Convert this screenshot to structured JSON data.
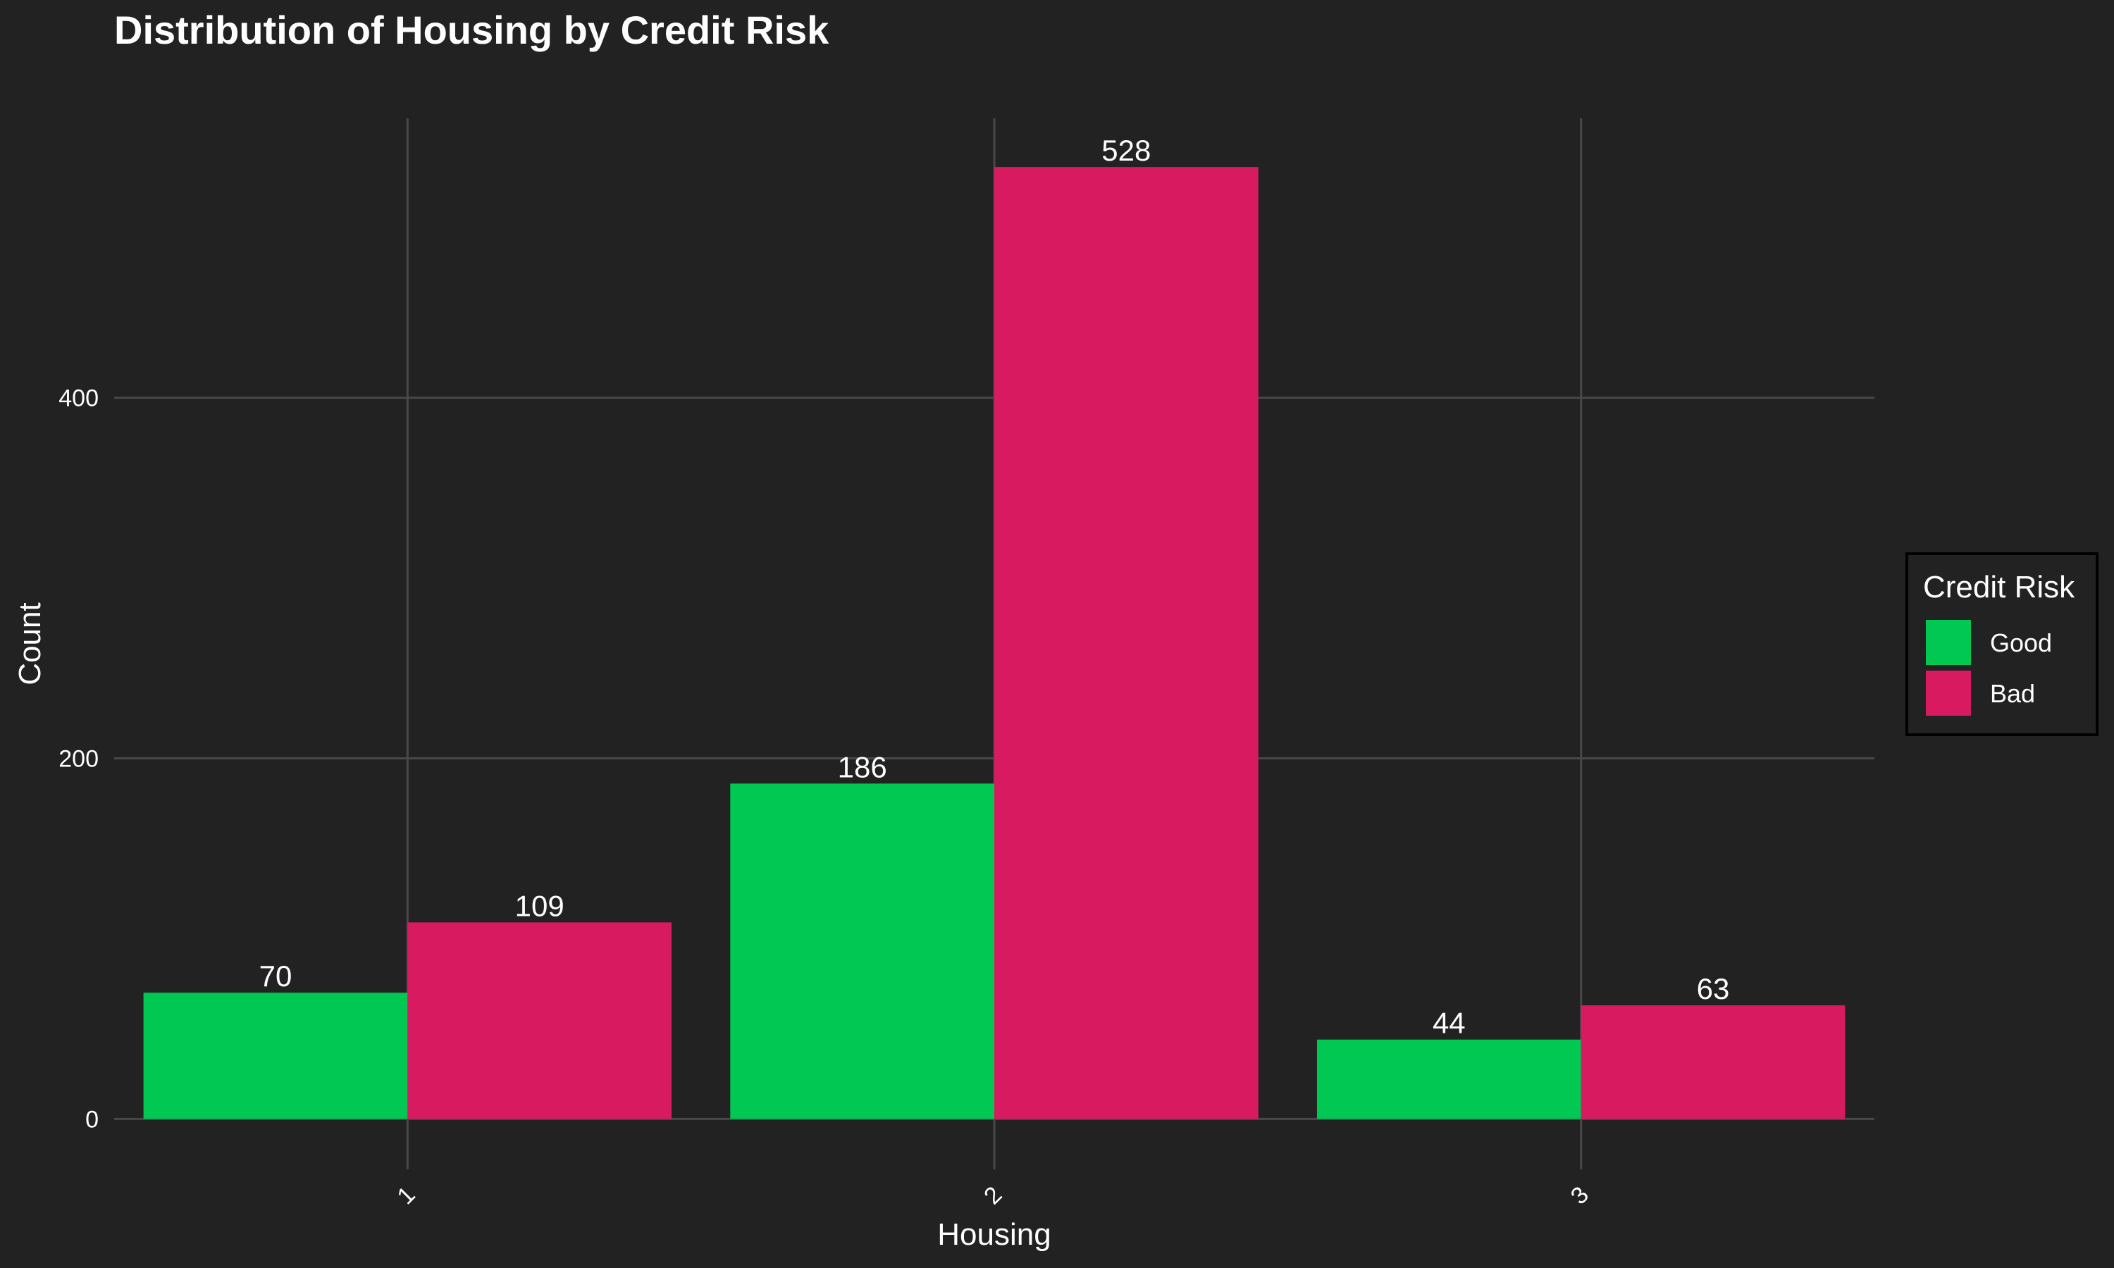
{
  "chart_data": {
    "type": "bar",
    "title": "Distribution of Housing by Credit Risk",
    "xlabel": "Housing",
    "ylabel": "Count",
    "categories": [
      "1",
      "2",
      "3"
    ],
    "series": [
      {
        "name": "Good",
        "values": [
          70,
          186,
          44
        ],
        "color": "#00c853"
      },
      {
        "name": "Bad",
        "values": [
          109,
          528,
          63
        ],
        "color": "#d81b60"
      }
    ],
    "yticks": [
      0,
      200,
      400
    ],
    "ylim": [
      -28,
      555
    ],
    "grid": true,
    "legend": {
      "title": "Credit Risk",
      "placement": "right"
    },
    "colors": {
      "background": "#222222",
      "grid": "#484848",
      "text": "#ffffff"
    }
  }
}
